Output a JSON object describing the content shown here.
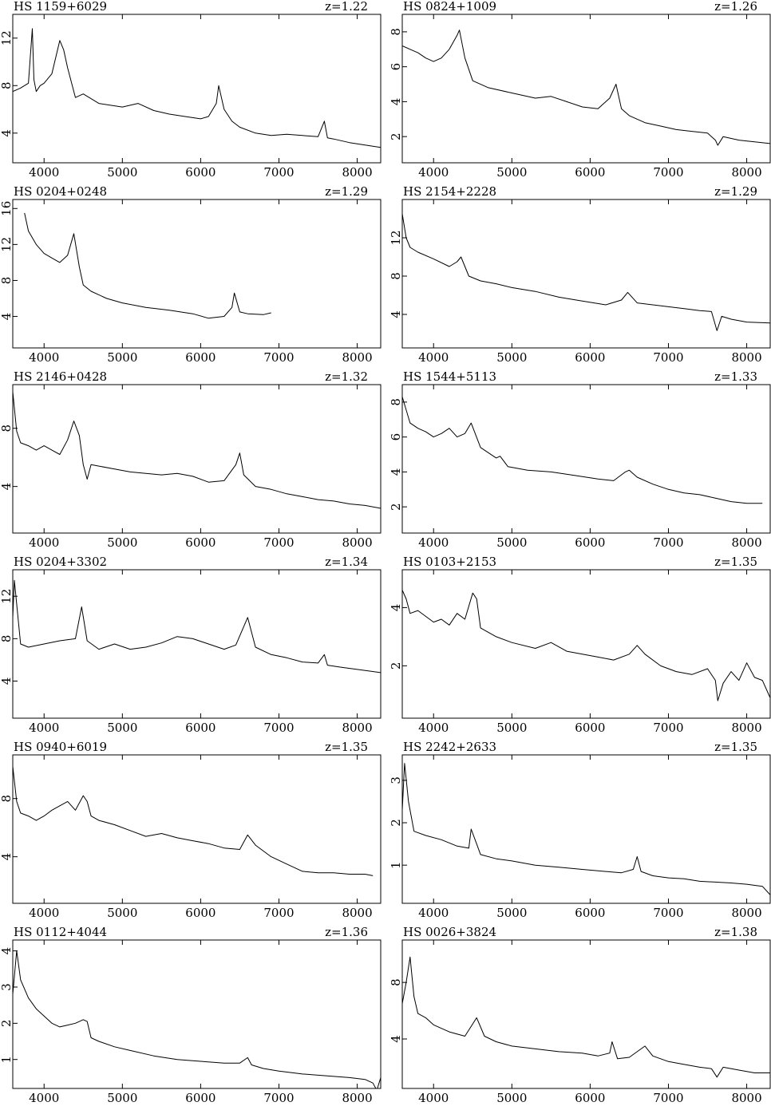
{
  "chart_data": [
    {
      "type": "line",
      "title": "HS 1159+6029",
      "redshift": "z=1.22",
      "xlim": [
        3600,
        8300
      ],
      "ylim": [
        1.5,
        14.0
      ],
      "xticks": [
        4000,
        5000,
        6000,
        7000,
        8000
      ],
      "yticks": [
        4,
        8,
        12
      ],
      "series": [
        {
          "x": [
            3600,
            3700,
            3800,
            3850,
            3870,
            3900,
            3950,
            4000,
            4100,
            4200,
            4250,
            4300,
            4400,
            4500,
            4700,
            5000,
            5200,
            5400,
            5600,
            5800,
            6000,
            6100,
            6200,
            6230,
            6300,
            6400,
            6500,
            6700,
            6900,
            7100,
            7300,
            7500,
            7580,
            7620,
            7700,
            7900,
            8100,
            8300
          ],
          "y": [
            7.5,
            7.8,
            8.2,
            12.8,
            8.5,
            7.5,
            8.0,
            8.2,
            9.0,
            11.8,
            11.0,
            9.5,
            7.0,
            7.3,
            6.5,
            6.2,
            6.5,
            5.9,
            5.6,
            5.4,
            5.2,
            5.4,
            6.5,
            8.0,
            6.0,
            5.0,
            4.5,
            4.0,
            3.8,
            3.9,
            3.8,
            3.7,
            5.0,
            3.6,
            3.5,
            3.2,
            3.0,
            2.8
          ]
        }
      ]
    },
    {
      "type": "line",
      "title": "HS 0824+1009",
      "redshift": "z=1.26",
      "xlim": [
        3600,
        8300
      ],
      "ylim": [
        0.5,
        9.0
      ],
      "xticks": [
        4000,
        5000,
        6000,
        7000,
        8000
      ],
      "yticks": [
        2,
        4,
        6,
        8
      ],
      "series": [
        {
          "x": [
            3600,
            3700,
            3800,
            3900,
            4000,
            4100,
            4200,
            4300,
            4330,
            4400,
            4500,
            4700,
            5000,
            5300,
            5500,
            5700,
            5900,
            6100,
            6250,
            6330,
            6400,
            6500,
            6700,
            6900,
            7100,
            7300,
            7500,
            7600,
            7630,
            7700,
            7900,
            8100,
            8300
          ],
          "y": [
            7.2,
            7.0,
            6.8,
            6.5,
            6.3,
            6.5,
            7.0,
            7.8,
            8.1,
            6.5,
            5.2,
            4.8,
            4.5,
            4.2,
            4.3,
            4.0,
            3.7,
            3.6,
            4.2,
            5.0,
            3.6,
            3.2,
            2.8,
            2.6,
            2.4,
            2.3,
            2.2,
            1.8,
            1.5,
            2.0,
            1.8,
            1.7,
            1.6
          ]
        }
      ]
    },
    {
      "type": "line",
      "title": "HS 0204+0248",
      "redshift": "z=1.29",
      "xlim": [
        3600,
        8300
      ],
      "ylim": [
        0.5,
        17.0
      ],
      "xticks": [
        4000,
        5000,
        6000,
        7000,
        8000
      ],
      "yticks": [
        4,
        8,
        12,
        16
      ],
      "series": [
        {
          "x": [
            3750,
            3800,
            3900,
            4000,
            4100,
            4200,
            4300,
            4380,
            4450,
            4500,
            4600,
            4800,
            5000,
            5300,
            5600,
            5900,
            6100,
            6300,
            6400,
            6430,
            6500,
            6600,
            6800,
            6900
          ],
          "y": [
            15.5,
            13.5,
            12.0,
            11.0,
            10.5,
            10.0,
            10.8,
            13.2,
            9.5,
            7.5,
            6.8,
            6.0,
            5.5,
            5.0,
            4.7,
            4.3,
            3.8,
            4.0,
            5.0,
            6.6,
            4.5,
            4.3,
            4.2,
            4.4
          ]
        }
      ]
    },
    {
      "type": "line",
      "title": "HS 2154+2228",
      "redshift": "z=1.29",
      "xlim": [
        3600,
        8300
      ],
      "ylim": [
        0.5,
        16.0
      ],
      "xticks": [
        4000,
        5000,
        6000,
        7000,
        8000
      ],
      "yticks": [
        4,
        8,
        12
      ],
      "series": [
        {
          "x": [
            3600,
            3650,
            3700,
            3800,
            4000,
            4200,
            4300,
            4350,
            4450,
            4600,
            4800,
            5000,
            5300,
            5600,
            5900,
            6200,
            6400,
            6480,
            6600,
            6800,
            7000,
            7200,
            7400,
            7550,
            7620,
            7680,
            7800,
            8000,
            8300
          ],
          "y": [
            14.5,
            12.0,
            11.0,
            10.5,
            9.8,
            9.0,
            9.5,
            10.0,
            8.0,
            7.5,
            7.2,
            6.8,
            6.4,
            5.8,
            5.4,
            5.0,
            5.5,
            6.3,
            5.2,
            5.0,
            4.8,
            4.6,
            4.4,
            4.3,
            2.3,
            3.8,
            3.5,
            3.2,
            3.1
          ]
        }
      ]
    },
    {
      "type": "line",
      "title": "HS 2146+0428",
      "redshift": "z=1.32",
      "xlim": [
        3600,
        8300
      ],
      "ylim": [
        0.8,
        11.0
      ],
      "xticks": [
        4000,
        5000,
        6000,
        7000,
        8000
      ],
      "yticks": [
        4,
        8
      ],
      "series": [
        {
          "x": [
            3600,
            3650,
            3700,
            3800,
            3900,
            4000,
            4100,
            4200,
            4300,
            4380,
            4450,
            4500,
            4550,
            4600,
            4700,
            4900,
            5100,
            5300,
            5500,
            5700,
            5900,
            6100,
            6300,
            6450,
            6500,
            6550,
            6700,
            6900,
            7100,
            7300,
            7500,
            7700,
            7900,
            8100,
            8300
          ],
          "y": [
            10.5,
            7.8,
            7.0,
            6.8,
            6.5,
            6.8,
            6.5,
            6.2,
            7.2,
            8.5,
            7.5,
            5.5,
            4.5,
            5.5,
            5.4,
            5.2,
            5.0,
            4.9,
            4.8,
            4.9,
            4.7,
            4.3,
            4.4,
            5.5,
            6.3,
            4.8,
            4.0,
            3.8,
            3.5,
            3.3,
            3.1,
            3.0,
            2.8,
            2.7,
            2.5
          ]
        }
      ]
    },
    {
      "type": "line",
      "title": "HS 1544+5113",
      "redshift": "z=1.33",
      "xlim": [
        3600,
        8300
      ],
      "ylim": [
        0.5,
        9.0
      ],
      "xticks": [
        4000,
        5000,
        6000,
        7000,
        8000
      ],
      "yticks": [
        2,
        4,
        6,
        8
      ],
      "series": [
        {
          "x": [
            3600,
            3700,
            3800,
            3900,
            4000,
            4100,
            4200,
            4300,
            4400,
            4480,
            4600,
            4800,
            4850,
            4950,
            5200,
            5500,
            5800,
            6100,
            6300,
            6450,
            6500,
            6600,
            6800,
            7000,
            7200,
            7400,
            7600,
            7800,
            8000,
            8200
          ],
          "y": [
            8.3,
            6.8,
            6.5,
            6.3,
            6.0,
            6.2,
            6.5,
            6.0,
            6.2,
            6.8,
            5.4,
            4.8,
            4.9,
            4.3,
            4.1,
            4.0,
            3.8,
            3.6,
            3.5,
            4.0,
            4.1,
            3.7,
            3.3,
            3.0,
            2.8,
            2.7,
            2.5,
            2.3,
            2.2,
            2.2
          ]
        }
      ]
    },
    {
      "type": "line",
      "title": "HS 0204+3302",
      "redshift": "z=1.34",
      "xlim": [
        3600,
        8300
      ],
      "ylim": [
        0.5,
        14.5
      ],
      "xticks": [
        4000,
        5000,
        6000,
        7000,
        8000
      ],
      "yticks": [
        4,
        8,
        12
      ],
      "series": [
        {
          "x": [
            3600,
            3620,
            3700,
            3800,
            4000,
            4200,
            4400,
            4480,
            4550,
            4700,
            4900,
            5100,
            5300,
            5500,
            5700,
            5900,
            6100,
            6300,
            6450,
            6600,
            6700,
            6900,
            7100,
            7300,
            7500,
            7580,
            7620,
            7800,
            8000,
            8300
          ],
          "y": [
            10.0,
            13.5,
            7.5,
            7.2,
            7.5,
            7.8,
            8.0,
            11.0,
            7.8,
            7.0,
            7.5,
            7.0,
            7.2,
            7.6,
            8.2,
            8.0,
            7.5,
            7.0,
            7.4,
            10.0,
            7.2,
            6.5,
            6.2,
            5.8,
            5.7,
            6.5,
            5.5,
            5.3,
            5.1,
            4.8
          ]
        }
      ]
    },
    {
      "type": "line",
      "title": "HS 0103+2153",
      "redshift": "z=1.35",
      "xlim": [
        3600,
        8300
      ],
      "ylim": [
        0.2,
        5.3
      ],
      "xticks": [
        4000,
        5000,
        6000,
        7000,
        8000
      ],
      "yticks": [
        2,
        4
      ],
      "series": [
        {
          "x": [
            3600,
            3650,
            3700,
            3800,
            3900,
            4000,
            4100,
            4200,
            4300,
            4400,
            4500,
            4550,
            4600,
            4800,
            5000,
            5300,
            5500,
            5700,
            5900,
            6100,
            6300,
            6500,
            6600,
            6700,
            6900,
            7100,
            7300,
            7500,
            7600,
            7630,
            7700,
            7800,
            7900,
            8000,
            8100,
            8200,
            8300
          ],
          "y": [
            4.6,
            4.3,
            3.8,
            3.9,
            3.7,
            3.5,
            3.6,
            3.4,
            3.8,
            3.6,
            4.5,
            4.3,
            3.3,
            3.0,
            2.8,
            2.6,
            2.8,
            2.5,
            2.4,
            2.3,
            2.2,
            2.4,
            2.7,
            2.4,
            2.0,
            1.8,
            1.7,
            1.9,
            1.5,
            0.8,
            1.4,
            1.8,
            1.5,
            2.1,
            1.6,
            1.5,
            0.9
          ]
        }
      ]
    },
    {
      "type": "line",
      "title": "HS 0940+6019",
      "redshift": "z=1.35",
      "xlim": [
        3600,
        8300
      ],
      "ylim": [
        0.8,
        11.0
      ],
      "xticks": [
        4000,
        5000,
        6000,
        7000,
        8000
      ],
      "yticks": [
        4,
        8
      ],
      "series": [
        {
          "x": [
            3600,
            3650,
            3700,
            3800,
            3900,
            4000,
            4100,
            4200,
            4300,
            4400,
            4500,
            4550,
            4600,
            4700,
            4900,
            5100,
            5300,
            5500,
            5700,
            5900,
            6100,
            6300,
            6500,
            6600,
            6700,
            6900,
            7100,
            7300,
            7500,
            7700,
            7900,
            8100,
            8200
          ],
          "y": [
            10.2,
            7.8,
            7.0,
            6.8,
            6.5,
            6.8,
            7.2,
            7.5,
            7.8,
            7.2,
            8.2,
            7.8,
            6.8,
            6.5,
            6.2,
            5.8,
            5.4,
            5.6,
            5.3,
            5.1,
            4.9,
            4.6,
            4.5,
            5.5,
            4.8,
            4.0,
            3.5,
            3.0,
            2.9,
            2.9,
            2.8,
            2.8,
            2.7
          ]
        }
      ]
    },
    {
      "type": "line",
      "title": "HS 2242+2633",
      "redshift": "z=1.35",
      "xlim": [
        3600,
        8300
      ],
      "ylim": [
        0.1,
        3.6
      ],
      "xticks": [
        4000,
        5000,
        6000,
        7000,
        8000
      ],
      "yticks": [
        1,
        2,
        3
      ],
      "series": [
        {
          "x": [
            3600,
            3630,
            3680,
            3750,
            3900,
            4100,
            4300,
            4450,
            4480,
            4550,
            4600,
            4800,
            5000,
            5300,
            5600,
            5900,
            6200,
            6400,
            6550,
            6600,
            6650,
            6800,
            7000,
            7200,
            7400,
            7600,
            7800,
            8000,
            8200,
            8300
          ],
          "y": [
            2.3,
            3.4,
            2.5,
            1.8,
            1.7,
            1.6,
            1.45,
            1.4,
            1.85,
            1.5,
            1.25,
            1.15,
            1.1,
            1.0,
            0.95,
            0.9,
            0.85,
            0.82,
            0.9,
            1.2,
            0.85,
            0.75,
            0.7,
            0.68,
            0.62,
            0.6,
            0.58,
            0.55,
            0.5,
            0.3
          ]
        }
      ]
    },
    {
      "type": "line",
      "title": "HS 0112+4044",
      "redshift": "z=1.36",
      "xlim": [
        3600,
        8300
      ],
      "ylim": [
        0.2,
        4.3
      ],
      "xticks": [
        4000,
        5000,
        6000,
        7000,
        8000
      ],
      "yticks": [
        1,
        2,
        3,
        4
      ],
      "series": [
        {
          "x": [
            3600,
            3650,
            3700,
            3800,
            3900,
            4000,
            4100,
            4200,
            4300,
            4400,
            4500,
            4550,
            4600,
            4700,
            4900,
            5100,
            5400,
            5700,
            6000,
            6300,
            6500,
            6600,
            6650,
            6800,
            7000,
            7300,
            7600,
            7900,
            8100,
            8200,
            8250,
            8300
          ],
          "y": [
            2.8,
            4.0,
            3.2,
            2.7,
            2.4,
            2.2,
            2.0,
            1.9,
            1.95,
            2.0,
            2.1,
            2.05,
            1.6,
            1.5,
            1.35,
            1.25,
            1.1,
            1.0,
            0.95,
            0.9,
            0.9,
            1.05,
            0.85,
            0.75,
            0.68,
            0.6,
            0.55,
            0.5,
            0.45,
            0.35,
            0.15,
            0.5
          ]
        }
      ]
    },
    {
      "type": "line",
      "title": "HS 0026+3824",
      "redshift": "z=1.38",
      "xlim": [
        3600,
        8300
      ],
      "ylim": [
        0.5,
        11.0
      ],
      "xticks": [
        4000,
        5000,
        6000,
        7000,
        8000
      ],
      "yticks": [
        4,
        8
      ],
      "series": [
        {
          "x": [
            3600,
            3650,
            3700,
            3750,
            3800,
            3900,
            4000,
            4200,
            4400,
            4550,
            4650,
            4800,
            5000,
            5300,
            5600,
            5900,
            6100,
            6250,
            6280,
            6350,
            6500,
            6700,
            6800,
            7000,
            7200,
            7400,
            7550,
            7620,
            7700,
            7900,
            8100,
            8300
          ],
          "y": [
            6.5,
            8.0,
            9.8,
            7.0,
            5.8,
            5.5,
            5.0,
            4.5,
            4.2,
            5.5,
            4.2,
            3.8,
            3.5,
            3.3,
            3.1,
            3.0,
            2.8,
            3.0,
            3.8,
            2.6,
            2.7,
            3.5,
            2.8,
            2.4,
            2.2,
            2.0,
            1.9,
            1.3,
            2.0,
            1.8,
            1.6,
            1.6
          ]
        }
      ]
    }
  ]
}
